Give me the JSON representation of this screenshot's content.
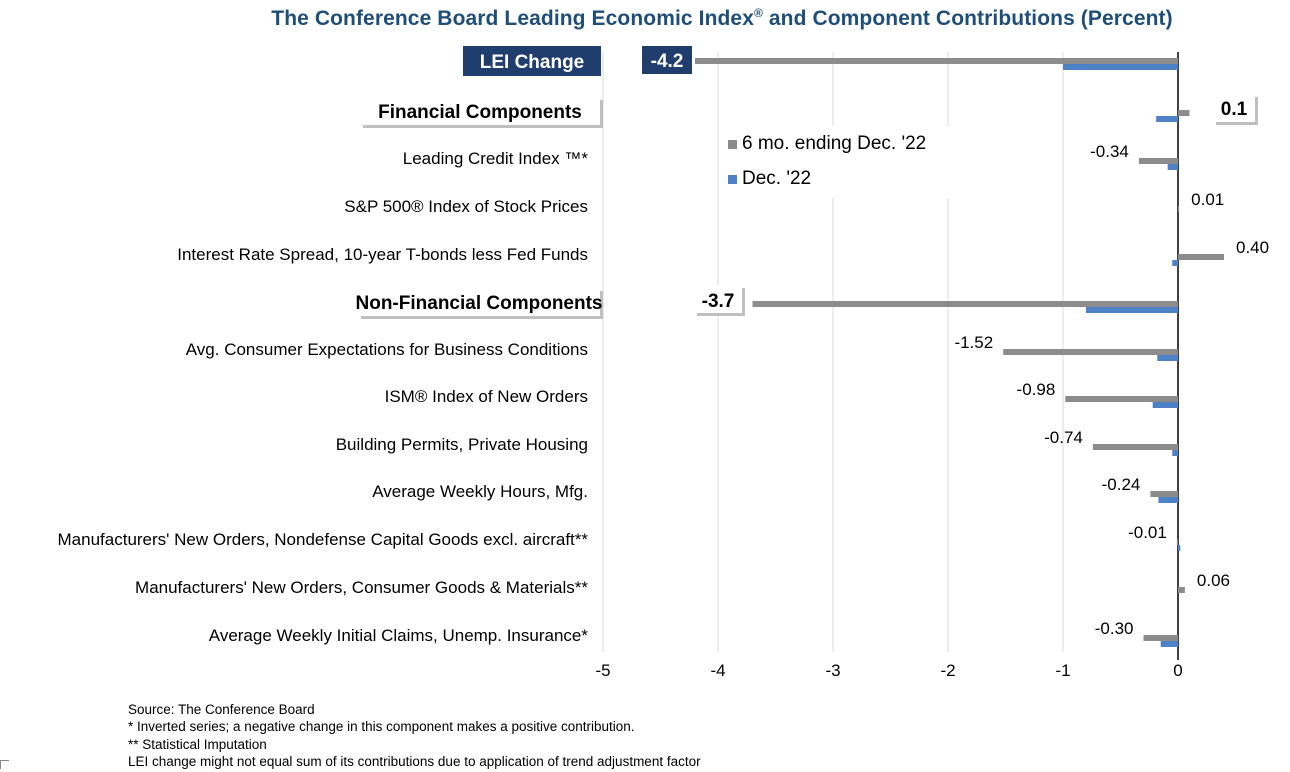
{
  "title": {
    "main": "The Conference Board Leading Economic Index",
    "sup": "®",
    "rest": " and Component Contributions (Percent)"
  },
  "chart_data": {
    "type": "bar",
    "orientation": "horizontal",
    "xlim": [
      -5,
      0.4
    ],
    "x_ticks": [
      "-5",
      "-4",
      "-3",
      "-2",
      "-1",
      "0"
    ],
    "categories": [
      "LEI Change",
      "Financial Components",
      "Leading Credit Index ™*",
      "S&P 500® Index of Stock Prices",
      "Interest Rate Spread, 10-year T-bonds less Fed Funds",
      "Non-Financial Components",
      "Avg. Consumer Expectations for Business Conditions",
      "ISM® Index of New Orders",
      "Building Permits, Private Housing",
      "Average Weekly Hours, Mfg.",
      "Manufacturers' New Orders, Nondefense Capital Goods excl. aircraft**",
      "Manufacturers' New Orders, Consumer Goods & Materials**",
      "Average Weekly Initial Claims, Unemp. Insurance*"
    ],
    "series": [
      {
        "name": "6 mo. ending Dec. '22",
        "color": "#8c8c8c",
        "values": [
          -4.2,
          0.1,
          -0.34,
          0.01,
          0.4,
          -3.7,
          -1.52,
          -0.98,
          -0.74,
          -0.24,
          -0.01,
          0.06,
          -0.3
        ]
      },
      {
        "name": "Dec. '22",
        "color": "#4f81c6",
        "values": [
          -1.0,
          -0.19,
          -0.09,
          0.0,
          -0.05,
          -0.8,
          -0.18,
          -0.22,
          -0.05,
          -0.17,
          0.02,
          0.0,
          -0.15
        ]
      }
    ],
    "data_labels": [
      "-4.2",
      "0.1",
      "-0.34",
      "0.01",
      "0.40",
      "-3.7",
      "-1.52",
      "-0.98",
      "-0.74",
      "-0.24",
      "-0.01",
      "0.06",
      "-0.30"
    ],
    "header_rows": [
      0,
      1,
      5
    ],
    "lei_label": "LEI Change",
    "lei_label_color": "#1f3e6e",
    "gridlines": "vertical",
    "legend_position": "center"
  },
  "legend": {
    "items": [
      {
        "label": "6 mo. ending Dec. '22",
        "color": "#8c8c8c"
      },
      {
        "label": "Dec. '22",
        "color": "#4f81c6"
      }
    ]
  },
  "footnotes": [
    "Source: The Conference Board",
    "*  Inverted series; a negative change in this component makes a positive contribution.",
    "**  Statistical Imputation",
    "LEI change might not equal sum of    its contributions due to application of trend adjustment factor"
  ]
}
